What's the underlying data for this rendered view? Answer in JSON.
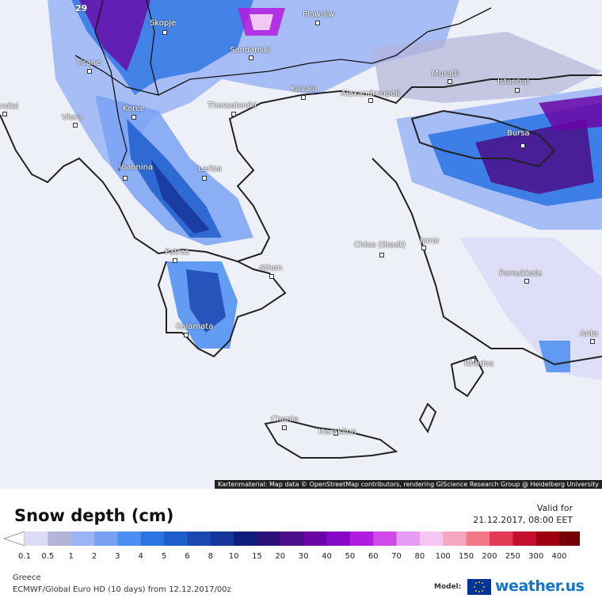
{
  "map": {
    "region": "Greece",
    "corner_value": "29",
    "cities": [
      {
        "name": "Skopje"
      },
      {
        "name": "Plowdiw"
      },
      {
        "name": "Sandanski"
      },
      {
        "name": "Tirane"
      },
      {
        "name": "Muratli"
      },
      {
        "name": "Istanbul"
      },
      {
        "name": "Kavala"
      },
      {
        "name": "Alexandroupoli"
      },
      {
        "name": "Thessaloniki"
      },
      {
        "name": "Korce"
      },
      {
        "name": "Vlora"
      },
      {
        "name": "ndisi"
      },
      {
        "name": "Bursa"
      },
      {
        "name": "Larisa"
      },
      {
        "name": "Ioannina"
      },
      {
        "name": "Chios (Stadt)"
      },
      {
        "name": "Izmir"
      },
      {
        "name": "Patras"
      },
      {
        "name": "Athen"
      },
      {
        "name": "Pamukkale"
      },
      {
        "name": "Kalamata"
      },
      {
        "name": "Anta"
      },
      {
        "name": "Rhodos"
      },
      {
        "name": "Chania"
      },
      {
        "name": "Heraklion"
      }
    ],
    "attribution": "Kartenmaterial: Map data © OpenStreetMap contributors, rendering GIScience Research Group @ Heidelberg University"
  },
  "legend": {
    "title": "Snow depth (cm)",
    "valid_label": "Valid for",
    "valid_date": "21.12.2017, 08:00 EET",
    "ticks": [
      "0.1",
      "0.5",
      "1",
      "2",
      "3",
      "4",
      "5",
      "6",
      "8",
      "10",
      "15",
      "20",
      "30",
      "40",
      "50",
      "60",
      "70",
      "80",
      "100",
      "150",
      "200",
      "250",
      "300",
      "400"
    ],
    "colors": [
      "#dcdcf7",
      "#b4b4d8",
      "#9ab4f4",
      "#7aa2f4",
      "#4a8ef2",
      "#2b74e4",
      "#1e5ecb",
      "#1a48b0",
      "#15359a",
      "#0c1e7a",
      "#2c0f74",
      "#4b0e88",
      "#6a06a6",
      "#8808c7",
      "#b11be0",
      "#d04aea",
      "#e69cf2",
      "#f4c6f4",
      "#f4a8c0",
      "#f07888",
      "#e23a55",
      "#c4102e",
      "#9e0010",
      "#760008",
      "#56000a"
    ]
  },
  "footer": {
    "region_label": "Greece",
    "model_line": "ECMWF/Global Euro HD (10 days) from 12.12.2017/00z",
    "model_label": "Model:",
    "brand": "weather.us"
  }
}
